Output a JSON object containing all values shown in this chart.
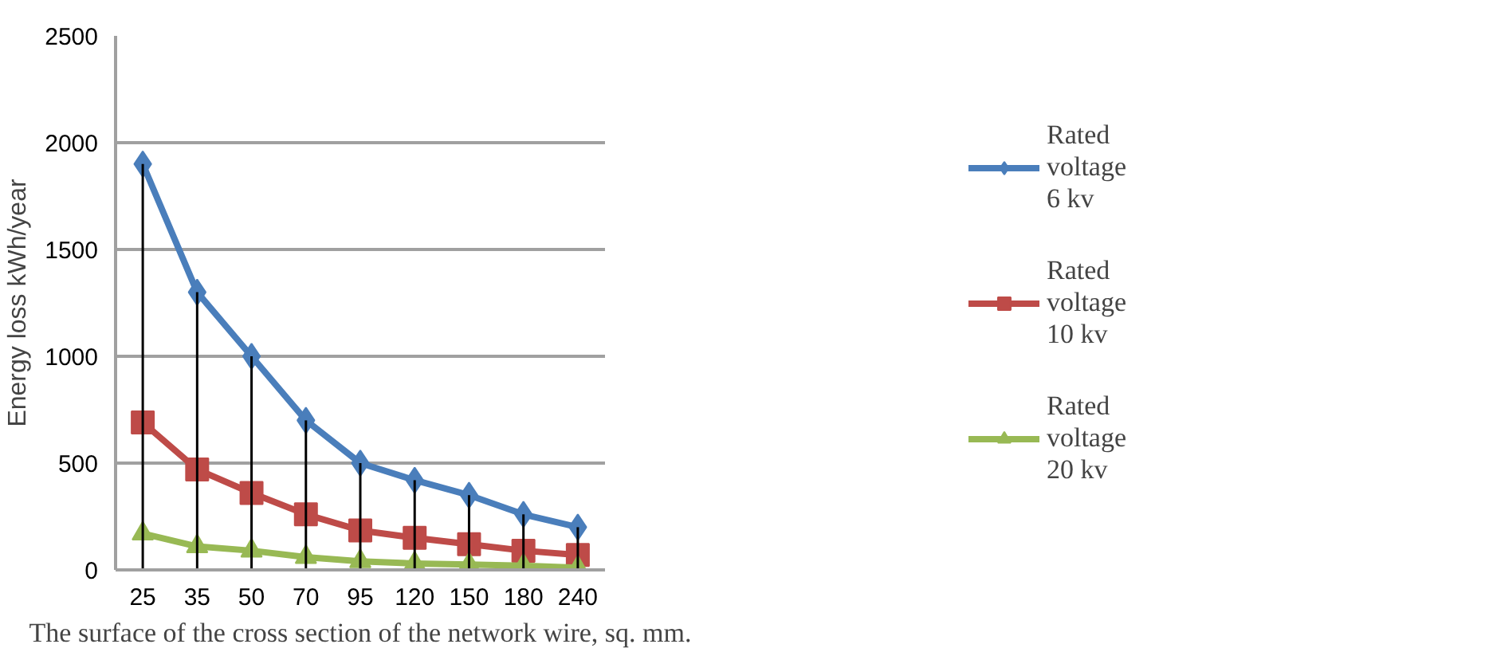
{
  "chart_data": {
    "type": "line",
    "xlabel": "The surface of the cross section of the network wire, sq. mm.",
    "ylabel": "Energy loss kWh/year",
    "categories": [
      "25",
      "35",
      "50",
      "70",
      "95",
      "120",
      "150",
      "180",
      "240"
    ],
    "series": [
      {
        "name": "Rated voltage 6 kv",
        "color": "#4a7ebb",
        "marker": "diamond",
        "values": [
          1900,
          1300,
          1000,
          700,
          500,
          420,
          350,
          260,
          200
        ],
        "errors": [
          [
            1900,
            0
          ],
          [
            1300,
            0
          ],
          [
            1000,
            0
          ],
          [
            700,
            0
          ],
          [
            500,
            0
          ],
          [
            420,
            0
          ],
          [
            350,
            0
          ],
          [
            260,
            0
          ],
          [
            200,
            0
          ]
        ]
      },
      {
        "name": "Rated voltage 10 kv",
        "color": "#be4b48",
        "marker": "square",
        "values": [
          690,
          470,
          360,
          260,
          185,
          150,
          120,
          90,
          70
        ]
      },
      {
        "name": "Rated voltage 20 kv",
        "color": "#98b954",
        "marker": "triangle",
        "values": [
          170,
          110,
          90,
          60,
          40,
          30,
          25,
          20,
          10
        ]
      }
    ],
    "ylim": [
      0,
      2500
    ],
    "yticks": [
      0,
      500,
      1000,
      1500,
      2000,
      2500
    ],
    "grid": "y",
    "legend": "right"
  }
}
